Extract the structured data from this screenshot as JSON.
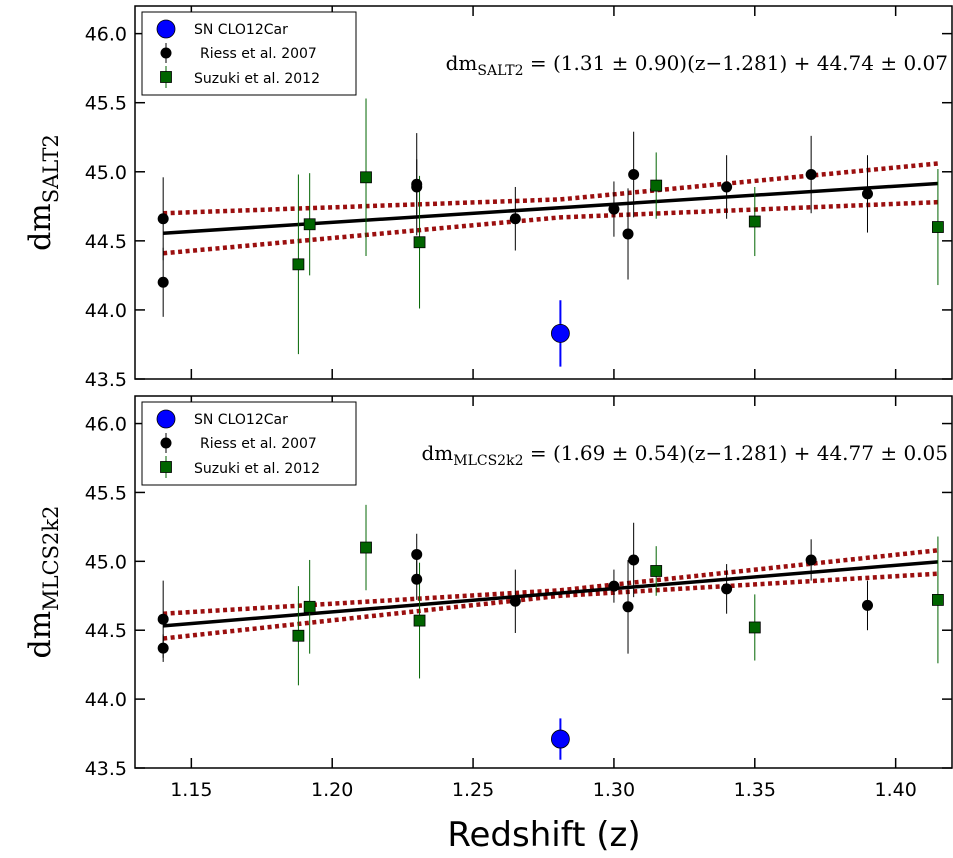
{
  "chart_data": [
    {
      "type": "scatter",
      "ylabel_main": "dm",
      "ylabel_sub": "SALT2",
      "xlabel": "Redshift (z)",
      "xlim": [
        1.13,
        1.42
      ],
      "ylim": [
        43.5,
        46.2
      ],
      "x_ticks": [
        "1.15",
        "1.20",
        "1.25",
        "1.30",
        "1.35",
        "1.40"
      ],
      "y_ticks": [
        "43.5",
        "44.0",
        "44.5",
        "45.0",
        "45.5",
        "46.0"
      ],
      "annotation": {
        "lhs_main": "dm",
        "lhs_sub": "SALT2",
        "rhs": " = (1.31 ± 0.90)(z−1.281) + 44.74 ± 0.07"
      },
      "legend": {
        "location": "top-left",
        "entries": [
          "SN CLO12Car",
          "Riess et al. 2007",
          "Suzuki et al. 2012"
        ]
      },
      "fit": {
        "slope": 1.31,
        "z0": 1.281,
        "intercept": 44.74,
        "x_range": [
          1.14,
          1.415
        ]
      },
      "confidence_band": {
        "upper": [
          [
            1.14,
            44.7
          ],
          [
            1.281,
            44.8
          ],
          [
            1.415,
            45.06
          ]
        ],
        "lower": [
          [
            1.14,
            44.41
          ],
          [
            1.281,
            44.67
          ],
          [
            1.415,
            44.78
          ]
        ]
      },
      "series": [
        {
          "name": "SN CLO12Car",
          "color": "#0000ff",
          "marker": "circle-large",
          "points": [
            {
              "x": 1.281,
              "y": 43.83,
              "err": 0.24
            }
          ]
        },
        {
          "name": "Riess et al. 2007",
          "color": "#000000",
          "marker": "circle",
          "points": [
            {
              "x": 1.14,
              "y": 44.66,
              "err": 0.3
            },
            {
              "x": 1.14,
              "y": 44.2,
              "err": 0.25
            },
            {
              "x": 1.23,
              "y": 44.91,
              "err": 0.37
            },
            {
              "x": 1.23,
              "y": 44.89,
              "err": 0.2
            },
            {
              "x": 1.265,
              "y": 44.66,
              "err": 0.23
            },
            {
              "x": 1.3,
              "y": 44.73,
              "err": 0.2
            },
            {
              "x": 1.305,
              "y": 44.55,
              "err": 0.33
            },
            {
              "x": 1.307,
              "y": 44.98,
              "err": 0.31
            },
            {
              "x": 1.34,
              "y": 44.89,
              "err": 0.23
            },
            {
              "x": 1.37,
              "y": 44.98,
              "err": 0.28
            },
            {
              "x": 1.39,
              "y": 44.84,
              "err": 0.28
            }
          ]
        },
        {
          "name": "Suzuki et al. 2012",
          "color": "#006400",
          "marker": "square",
          "points": [
            {
              "x": 1.188,
              "y": 44.33,
              "err": 0.65
            },
            {
              "x": 1.192,
              "y": 44.62,
              "err": 0.37
            },
            {
              "x": 1.212,
              "y": 44.96,
              "err": 0.57
            },
            {
              "x": 1.231,
              "y": 44.49,
              "err": 0.48
            },
            {
              "x": 1.315,
              "y": 44.9,
              "err": 0.24
            },
            {
              "x": 1.35,
              "y": 44.64,
              "err": 0.25
            },
            {
              "x": 1.415,
              "y": 44.6,
              "err": 0.42
            }
          ]
        }
      ]
    },
    {
      "type": "scatter",
      "ylabel_main": "dm",
      "ylabel_sub": "MLCS2k2",
      "xlabel": "Redshift (z)",
      "xlim": [
        1.13,
        1.42
      ],
      "ylim": [
        43.5,
        46.2
      ],
      "x_ticks": [
        "1.15",
        "1.20",
        "1.25",
        "1.30",
        "1.35",
        "1.40"
      ],
      "y_ticks": [
        "43.5",
        "44.0",
        "44.5",
        "45.0",
        "45.5",
        "46.0"
      ],
      "annotation": {
        "lhs_main": "dm",
        "lhs_sub": "MLCS2k2",
        "rhs": " = (1.69 ± 0.54)(z−1.281) + 44.77 ± 0.05"
      },
      "legend": {
        "location": "top-left",
        "entries": [
          "SN CLO12Car",
          "Riess et al. 2007",
          "Suzuki et al. 2012"
        ]
      },
      "fit": {
        "slope": 1.69,
        "z0": 1.281,
        "intercept": 44.77,
        "x_range": [
          1.14,
          1.415
        ]
      },
      "confidence_band": {
        "upper": [
          [
            1.14,
            44.62
          ],
          [
            1.281,
            44.79
          ],
          [
            1.415,
            45.08
          ]
        ],
        "lower": [
          [
            1.14,
            44.44
          ],
          [
            1.281,
            44.75
          ],
          [
            1.415,
            44.91
          ]
        ]
      },
      "series": [
        {
          "name": "SN CLO12Car",
          "color": "#0000ff",
          "marker": "circle-large",
          "points": [
            {
              "x": 1.281,
              "y": 43.71,
              "err": 0.15
            }
          ]
        },
        {
          "name": "Riess et al. 2007",
          "color": "#000000",
          "marker": "circle",
          "points": [
            {
              "x": 1.14,
              "y": 44.58,
              "err": 0.28
            },
            {
              "x": 1.14,
              "y": 44.37,
              "err": 0.1
            },
            {
              "x": 1.23,
              "y": 45.05,
              "err": 0.15
            },
            {
              "x": 1.23,
              "y": 44.87,
              "err": 0.15
            },
            {
              "x": 1.265,
              "y": 44.71,
              "err": 0.23
            },
            {
              "x": 1.3,
              "y": 44.82,
              "err": 0.12
            },
            {
              "x": 1.305,
              "y": 44.67,
              "err": 0.34
            },
            {
              "x": 1.307,
              "y": 45.01,
              "err": 0.27
            },
            {
              "x": 1.34,
              "y": 44.8,
              "err": 0.18
            },
            {
              "x": 1.37,
              "y": 45.01,
              "err": 0.15
            },
            {
              "x": 1.39,
              "y": 44.68,
              "err": 0.18
            }
          ]
        },
        {
          "name": "Suzuki et al. 2012",
          "color": "#006400",
          "marker": "square",
          "points": [
            {
              "x": 1.188,
              "y": 44.46,
              "err": 0.36
            },
            {
              "x": 1.192,
              "y": 44.67,
              "err": 0.34
            },
            {
              "x": 1.212,
              "y": 45.1,
              "err": 0.31
            },
            {
              "x": 1.231,
              "y": 44.57,
              "err": 0.42
            },
            {
              "x": 1.315,
              "y": 44.93,
              "err": 0.18
            },
            {
              "x": 1.35,
              "y": 44.52,
              "err": 0.24
            },
            {
              "x": 1.415,
              "y": 44.72,
              "err": 0.46
            }
          ]
        }
      ]
    }
  ],
  "colors": {
    "fit_line": "#000000",
    "confidence_band": "#9b0f0f",
    "clo12car": "#0000ff",
    "riess": "#000000",
    "suzuki": "#006400"
  }
}
